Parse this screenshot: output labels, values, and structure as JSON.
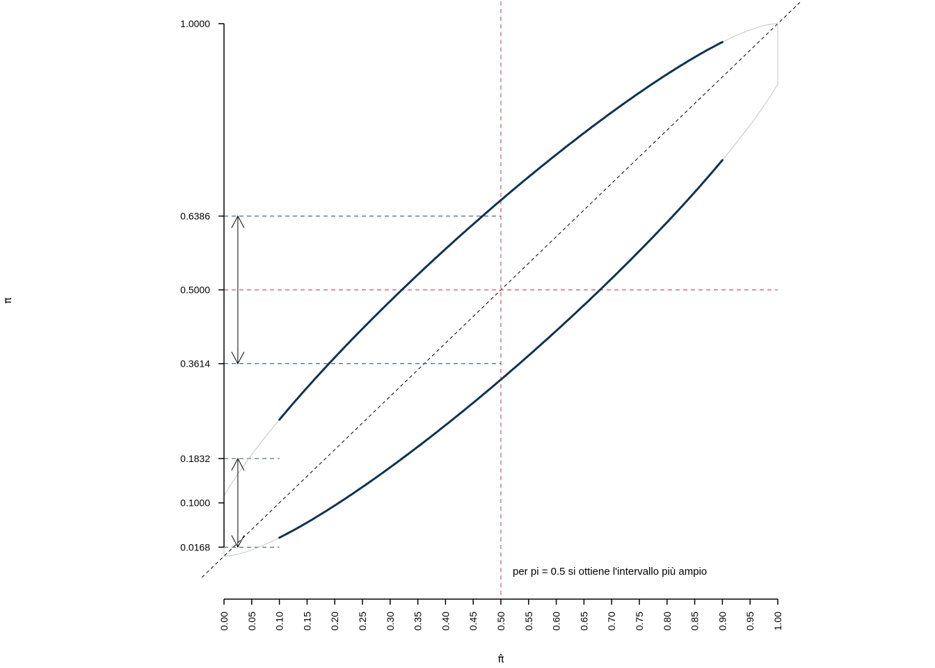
{
  "chart_data": {
    "type": "line",
    "title": "",
    "xlabel": "π̂",
    "ylabel": "π",
    "xlim": [
      0,
      1
    ],
    "ylim": [
      -0.02,
      1.02
    ],
    "x_ticks": [
      "0.00",
      "0.05",
      "0.10",
      "0.15",
      "0.20",
      "0.25",
      "0.30",
      "0.35",
      "0.40",
      "0.45",
      "0.50",
      "0.55",
      "0.60",
      "0.65",
      "0.70",
      "0.75",
      "0.80",
      "0.85",
      "0.90",
      "0.95",
      "1.00"
    ],
    "y_ticks": [
      {
        "value": 1.0,
        "label": "1.0000"
      },
      {
        "value": 0.6386,
        "label": "0.6386"
      },
      {
        "value": 0.5,
        "label": "0.5000"
      },
      {
        "value": 0.3614,
        "label": "0.3614"
      },
      {
        "value": 0.1832,
        "label": "0.1832"
      },
      {
        "value": 0.1,
        "label": "0.1000"
      },
      {
        "value": 0.0168,
        "label": "0.0168"
      }
    ],
    "grid": false,
    "colors": {
      "band": "#0d3354",
      "full_curve": "#c4c4c4",
      "reference": "#c85a6e",
      "guide": "#2a4c6d",
      "diagonal": "#000000"
    },
    "series": [
      {
        "role": "upper bound",
        "x": [
          0.1,
          0.2,
          0.3,
          0.4,
          0.5,
          0.6,
          0.7,
          0.8,
          0.9
        ],
        "y": [
          0.1832,
          0.3249,
          0.4404,
          0.5429,
          0.6386,
          0.7304,
          0.8195,
          0.905,
          0.9832
        ]
      },
      {
        "role": "lower bound",
        "x": [
          0.1,
          0.2,
          0.3,
          0.4,
          0.5,
          0.6,
          0.7,
          0.8,
          0.9
        ],
        "y": [
          0.0168,
          0.095,
          0.1805,
          0.2696,
          0.3614,
          0.4571,
          0.5596,
          0.6751,
          0.8168
        ]
      }
    ],
    "reference_lines": {
      "x": 0.5,
      "y": 0.5,
      "diagonal": "y = x"
    },
    "interval_arrows": [
      {
        "x": 0.025,
        "from": 0.3614,
        "to": 0.6386
      },
      {
        "x": 0.025,
        "from": 0.0168,
        "to": 0.1832
      }
    ],
    "annotation": {
      "text": "per pi = 0.5 si ottiene l'intervallo più ampio",
      "x": 0.52,
      "y": 0.0168
    }
  }
}
